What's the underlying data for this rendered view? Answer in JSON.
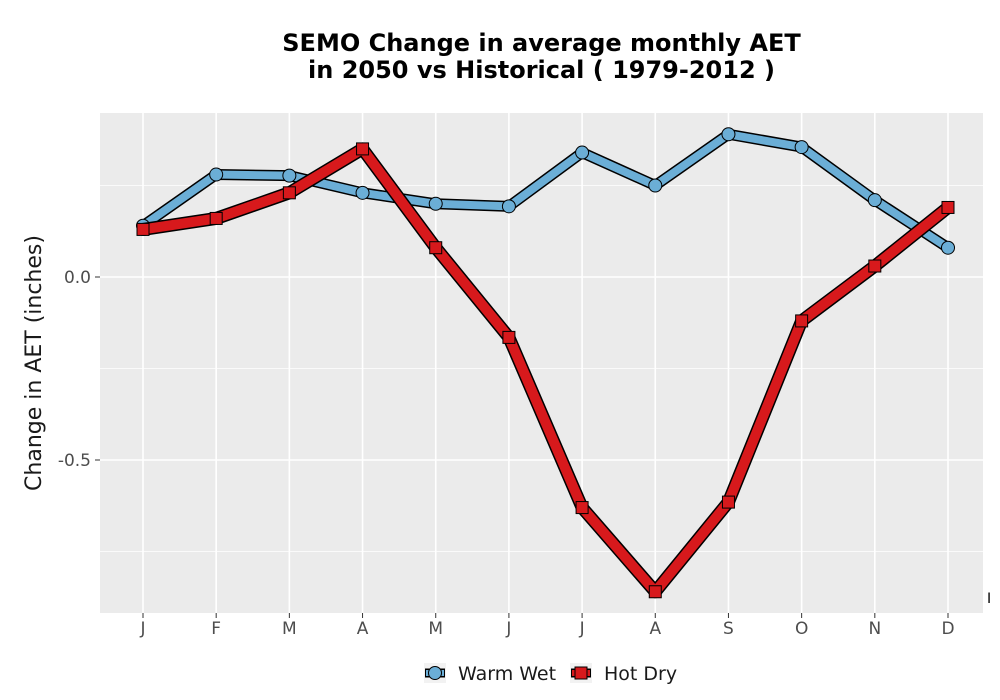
{
  "chart_data": {
    "type": "line",
    "title_line1": "SEMO  Change in average monthly AET",
    "title_line2": "in 2050 vs Historical ( 1979-2012 )",
    "ylabel": "Change in AET (inches)",
    "xlabel": "",
    "categories": [
      "J",
      "F",
      "M",
      "A",
      "M",
      "J",
      "J",
      "A",
      "S",
      "O",
      "N",
      "D"
    ],
    "y_ticks": [
      0.0,
      -0.5
    ],
    "y_tick_labels": [
      "0.0",
      "-0.5"
    ],
    "ylim": [
      -0.92,
      0.45
    ],
    "grid": true,
    "legend_position": "bottom",
    "corner_mark": "I",
    "series": [
      {
        "name": "Warm Wet",
        "marker": "circle",
        "color": "#6baed6",
        "values": [
          0.14,
          0.28,
          0.277,
          0.23,
          0.2,
          0.193,
          0.34,
          0.25,
          0.39,
          0.355,
          0.21,
          0.08
        ]
      },
      {
        "name": "Hot Dry",
        "marker": "square",
        "color": "#d7191c",
        "values": [
          0.13,
          0.16,
          0.23,
          0.35,
          0.08,
          -0.165,
          -0.63,
          -0.86,
          -0.615,
          -0.12,
          0.03,
          0.19
        ]
      }
    ]
  }
}
